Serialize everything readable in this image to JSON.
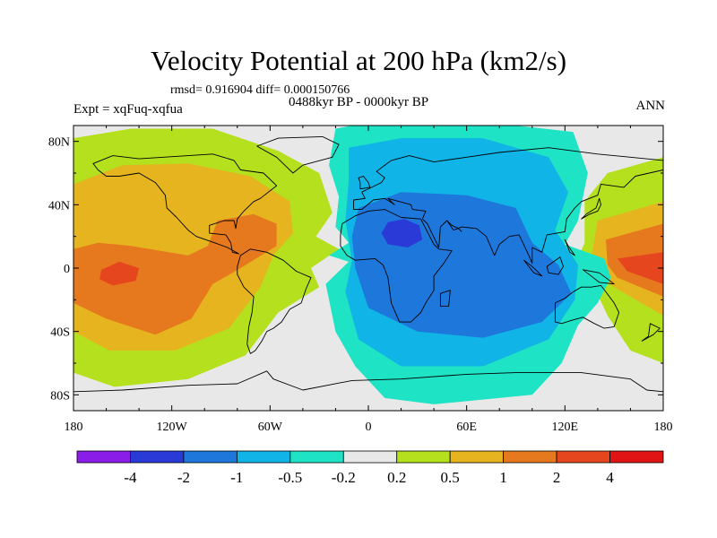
{
  "title": "Velocity Potential at 200 hPa (km2/s)",
  "stats_line": "rmsd= 0.916904 diff= 0.000150766",
  "experiment": "Expt = xqFuq-xqfua",
  "period": "0488kyr BP - 0000kyr BP",
  "season": "ANN",
  "chart_data": {
    "type": "contour-map",
    "projection": "cylindrical-equidistant",
    "variable": "Velocity Potential at 200 hPa",
    "units": "km2/s",
    "x_range": [
      -180,
      180
    ],
    "y_range": [
      -90,
      90
    ],
    "x_ticks": [
      -180,
      -120,
      -60,
      0,
      60,
      120,
      180
    ],
    "x_tick_labels": [
      "180",
      "120W",
      "60W",
      "0",
      "60E",
      "120E",
      "180"
    ],
    "y_ticks": [
      80,
      40,
      0,
      -40,
      -80
    ],
    "y_tick_labels": [
      "80N",
      "40N",
      "0",
      "40S",
      "80S"
    ],
    "levels": [
      -4,
      -2,
      -1,
      -0.5,
      -0.2,
      0.2,
      0.5,
      1,
      2,
      4
    ],
    "level_labels": [
      "-4",
      "-2",
      "-1",
      "-0.5",
      "-0.2",
      "0.2",
      "0.5",
      "1",
      "2",
      "4"
    ],
    "colors": [
      "#8a1ee8",
      "#2a3ad6",
      "#1e78dc",
      "#10b4e6",
      "#1ee3c4",
      "#e8e8e8",
      "#b4e01e",
      "#e6b41e",
      "#e6781e",
      "#e6461e",
      "#e01414"
    ],
    "features": [
      {
        "name": "divergence max (negative)",
        "lon": 20,
        "lat": 20,
        "level_bin": "-4 to -2"
      },
      {
        "name": "convergence max (positive)",
        "lon": -152,
        "lat": -5,
        "level_bin": "2 to 4"
      },
      {
        "name": "positive lobe",
        "lon": -65,
        "lat": 22,
        "level_bin": "1 to 2"
      },
      {
        "name": "positive tongue",
        "lon": 175,
        "lat": 0,
        "level_bin": "2 to 4"
      }
    ]
  }
}
